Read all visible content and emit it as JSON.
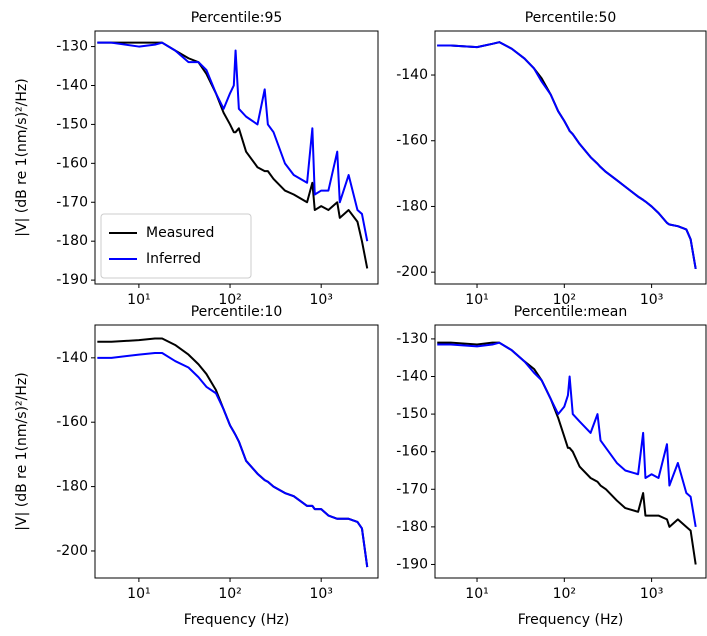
{
  "chart_data": [
    {
      "type": "line",
      "title": "Percentile:95",
      "ylabel": "|V| (dB re 1(nm/s)²/Hz)",
      "xscale": "log",
      "legend": "lower left",
      "x": [
        3.5,
        5,
        10,
        15,
        18,
        25,
        35,
        45,
        55,
        70,
        85,
        100,
        110,
        115,
        125,
        150,
        200,
        240,
        260,
        300,
        400,
        500,
        700,
        800,
        850,
        1000,
        1200,
        1500,
        1600,
        2000,
        2500,
        2800,
        3200
      ],
      "xlim": [
        3.3,
        4200
      ],
      "xticks": [
        {
          "value": 10,
          "label": "10¹"
        },
        {
          "value": 100,
          "label": "10²"
        },
        {
          "value": 1000,
          "label": "10³"
        }
      ],
      "ylim": [
        -191,
        -126
      ],
      "yticks": [
        -190,
        -180,
        -170,
        -160,
        -150,
        -140,
        -130
      ],
      "series": [
        {
          "name": "Measured",
          "color": "#000000",
          "values": [
            -129,
            -129,
            -129,
            -129,
            -129,
            -131,
            -133,
            -134,
            -137,
            -142,
            -147,
            -150,
            -152,
            -152,
            -151,
            -157,
            -161,
            -162,
            -162,
            -164,
            -167,
            -168,
            -170,
            -165,
            -172,
            -171,
            -172,
            -170,
            -174,
            -172,
            -175,
            -180,
            -187
          ]
        },
        {
          "name": "Inferred",
          "color": "#0000ff",
          "values": [
            -129,
            -129,
            -130,
            -129.5,
            -129,
            -131,
            -134,
            -134,
            -136,
            -142,
            -146,
            -142,
            -140,
            -131,
            -146,
            -148,
            -150,
            -141,
            -150,
            -152,
            -160,
            -163,
            -165,
            -151,
            -168,
            -167,
            -167,
            -157,
            -170,
            -163,
            -172,
            -173,
            -180
          ]
        }
      ]
    },
    {
      "type": "line",
      "title": "Percentile:50",
      "xscale": "log",
      "x": [
        3.5,
        5,
        10,
        15,
        18,
        25,
        35,
        45,
        55,
        70,
        85,
        100,
        110,
        115,
        125,
        150,
        200,
        240,
        260,
        300,
        400,
        500,
        700,
        800,
        850,
        1000,
        1200,
        1500,
        1600,
        2000,
        2500,
        2800,
        3200
      ],
      "xlim": [
        3.3,
        4200
      ],
      "xticks": [
        {
          "value": 10,
          "label": "10¹"
        },
        {
          "value": 100,
          "label": "10²"
        },
        {
          "value": 1000,
          "label": "10³"
        }
      ],
      "ylim": [
        -203.6,
        -126.6
      ],
      "yticks": [
        -200,
        -180,
        -160,
        -140
      ],
      "series": [
        {
          "color": "#000000",
          "values": [
            -131,
            -131,
            -131.5,
            -130.5,
            -130,
            -132,
            -135,
            -138,
            -141,
            -146,
            -151,
            -154,
            -156,
            -157,
            -158,
            -161,
            -165,
            -167,
            -168,
            -169.5,
            -172,
            -174,
            -177,
            -178,
            -178.5,
            -180,
            -182,
            -185,
            -185.5,
            -186,
            -187,
            -190,
            -199
          ]
        },
        {
          "color": "#0000ff",
          "values": [
            -131,
            -131,
            -131.5,
            -130.5,
            -130,
            -132,
            -135,
            -138,
            -142,
            -146,
            -151,
            -154,
            -156,
            -157,
            -158,
            -161,
            -165,
            -167,
            -168,
            -169.5,
            -172,
            -174,
            -177,
            -178,
            -178.5,
            -180,
            -182,
            -185,
            -185.5,
            -186,
            -187,
            -190,
            -199
          ]
        }
      ]
    },
    {
      "type": "line",
      "title": "Percentile:10",
      "ylabel": "|V| (dB re 1(nm/s)²/Hz)",
      "xlabel": "Frequency (Hz)",
      "xscale": "log",
      "x": [
        3.5,
        5,
        10,
        15,
        18,
        25,
        35,
        45,
        55,
        70,
        85,
        100,
        110,
        115,
        125,
        150,
        200,
        240,
        260,
        300,
        400,
        500,
        700,
        800,
        850,
        1000,
        1200,
        1500,
        1600,
        2000,
        2500,
        2800,
        3200
      ],
      "xlim": [
        3.3,
        4200
      ],
      "xticks": [
        {
          "value": 10,
          "label": "10¹"
        },
        {
          "value": 100,
          "label": "10²"
        },
        {
          "value": 1000,
          "label": "10³"
        }
      ],
      "ylim": [
        -208.4,
        -129.8
      ],
      "yticks": [
        -200,
        -180,
        -160,
        -140
      ],
      "series": [
        {
          "color": "#000000",
          "values": [
            -135,
            -135,
            -134.5,
            -134,
            -134,
            -136,
            -139,
            -142,
            -145,
            -150,
            -156,
            -161,
            -163,
            -164,
            -166,
            -172,
            -176,
            -178,
            -178.5,
            -180,
            -182,
            -183,
            -186,
            -186,
            -187,
            -187,
            -189,
            -190,
            -190,
            -190,
            -191,
            -193,
            -205
          ]
        },
        {
          "color": "#0000ff",
          "values": [
            -140,
            -140,
            -139,
            -138.5,
            -138.5,
            -141,
            -143,
            -146,
            -149,
            -151,
            -156,
            -161,
            -163,
            -164,
            -166,
            -172,
            -176,
            -178,
            -178.5,
            -180,
            -182,
            -183,
            -186,
            -186,
            -187,
            -187,
            -189,
            -190,
            -190,
            -190,
            -191,
            -193,
            -205
          ]
        }
      ]
    },
    {
      "type": "line",
      "title": "Percentile:mean",
      "xlabel": "Frequency (Hz)",
      "xscale": "log",
      "x": [
        3.5,
        5,
        10,
        15,
        18,
        25,
        35,
        45,
        55,
        70,
        85,
        100,
        110,
        115,
        125,
        150,
        200,
        240,
        260,
        300,
        400,
        500,
        700,
        800,
        850,
        1000,
        1200,
        1500,
        1600,
        2000,
        2500,
        2800,
        3200
      ],
      "xlim": [
        3.3,
        4200
      ],
      "xticks": [
        {
          "value": 10,
          "label": "10¹"
        },
        {
          "value": 100,
          "label": "10²"
        },
        {
          "value": 1000,
          "label": "10³"
        }
      ],
      "ylim": [
        -193.6,
        -126.3
      ],
      "yticks": [
        -190,
        -180,
        -170,
        -160,
        -150,
        -140,
        -130
      ],
      "series": [
        {
          "color": "#000000",
          "values": [
            -131,
            -131,
            -131.5,
            -131,
            -131,
            -133,
            -136,
            -138,
            -141,
            -146,
            -151,
            -156,
            -159,
            -159,
            -160,
            -164,
            -167,
            -168,
            -169,
            -170,
            -173,
            -175,
            -176,
            -171,
            -177,
            -177,
            -177,
            -178,
            -180,
            -178,
            -180,
            -181,
            -190
          ]
        },
        {
          "color": "#0000ff",
          "values": [
            -131.5,
            -131.5,
            -132,
            -131.5,
            -131,
            -133,
            -136,
            -139,
            -141,
            -146,
            -150,
            -148,
            -145,
            -140,
            -150,
            -152,
            -155,
            -150,
            -157,
            -159,
            -163,
            -165,
            -166,
            -155,
            -167,
            -166,
            -167,
            -158,
            -169,
            -163,
            -171,
            -172,
            -180
          ]
        }
      ]
    }
  ]
}
